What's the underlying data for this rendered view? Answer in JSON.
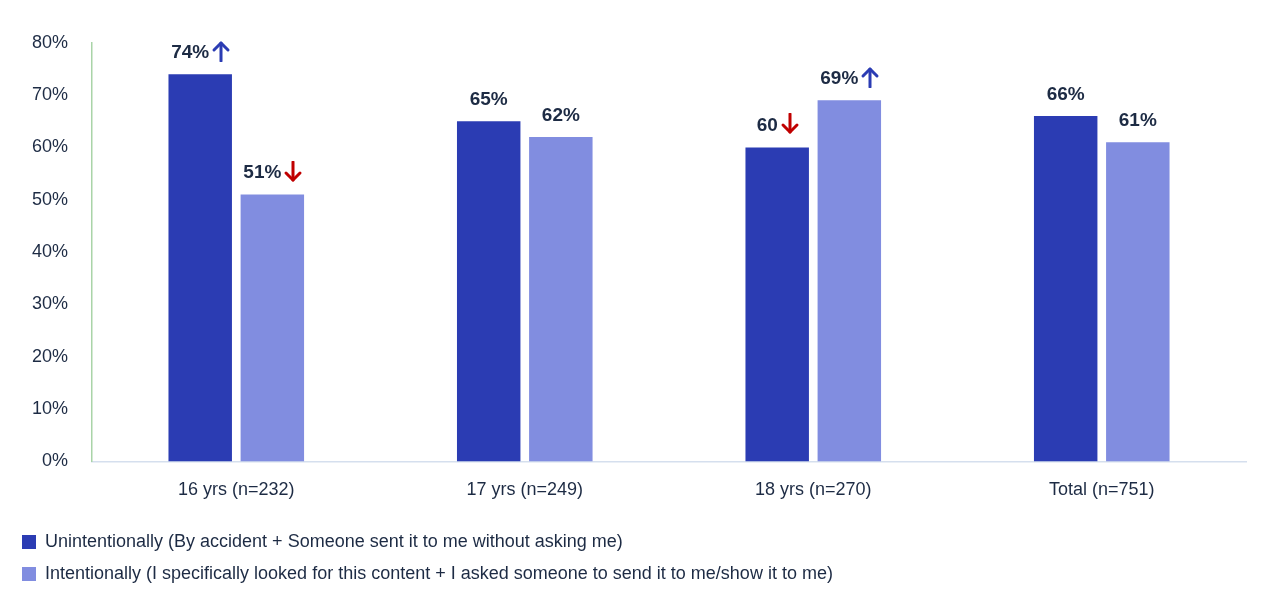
{
  "chart_data": {
    "type": "bar",
    "categories": [
      "16 yrs (n=232)",
      "17 yrs (n=249)",
      "18 yrs (n=270)",
      "Total (n=751)"
    ],
    "series": [
      {
        "name": "Unintentionally (By accident + Someone sent it to me without asking me)",
        "color": "#2b3cb3",
        "values": [
          74,
          65,
          60,
          66
        ],
        "value_labels": [
          "74%",
          "65%",
          "60",
          "66%"
        ]
      },
      {
        "name": "Intentionally (I specifically looked for this content + I asked someone to send it to me/show it to me)",
        "color": "#818de0",
        "values": [
          51,
          62,
          69,
          61
        ],
        "value_labels": [
          "51%",
          "62%",
          "69%",
          "61%"
        ]
      }
    ],
    "ylim": [
      0,
      80
    ],
    "yticks": [
      {
        "value": 0,
        "label": "0%"
      },
      {
        "value": 10,
        "label": "10%"
      },
      {
        "value": 20,
        "label": "20%"
      },
      {
        "value": 30,
        "label": "30%"
      },
      {
        "value": 40,
        "label": "40%"
      },
      {
        "value": 50,
        "label": "50%"
      },
      {
        "value": 60,
        "label": "60%"
      },
      {
        "value": 70,
        "label": "70%"
      },
      {
        "value": 80,
        "label": "80%"
      }
    ],
    "grid": false,
    "legend": "bottom"
  }
}
